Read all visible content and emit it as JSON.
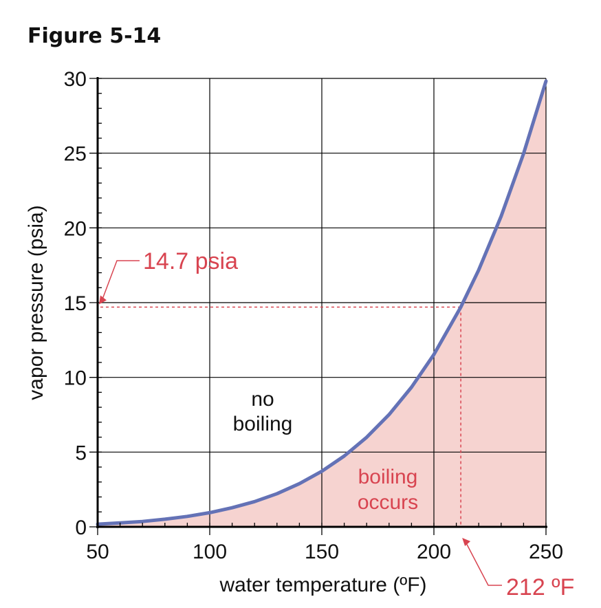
{
  "figure_title": "Figure 5-14",
  "colors": {
    "curve": "#6472b6",
    "fill": "#f6d3d0",
    "annotation": "#d84450",
    "grid": "#000000"
  },
  "chart_data": {
    "type": "area",
    "title": "",
    "xlabel": "water temperature (ºF)",
    "ylabel": "vapor pressure (psia)",
    "xlim": [
      50,
      250
    ],
    "ylim": [
      0,
      30
    ],
    "x_ticks": [
      50,
      100,
      150,
      200,
      250
    ],
    "y_ticks": [
      0,
      5,
      10,
      15,
      20,
      25,
      30
    ],
    "x_tick_labels": [
      "50",
      "100",
      "150",
      "200",
      "250"
    ],
    "y_tick_labels": [
      "0",
      "5",
      "10",
      "15",
      "20",
      "25",
      "30"
    ],
    "grid": true,
    "series": [
      {
        "x": [
          50,
          60,
          70,
          80,
          90,
          100,
          110,
          120,
          130,
          140,
          150,
          160,
          170,
          180,
          190,
          200,
          212,
          220,
          230,
          240,
          250
        ],
        "values": [
          0.18,
          0.26,
          0.36,
          0.51,
          0.7,
          0.95,
          1.28,
          1.69,
          2.22,
          2.89,
          3.72,
          4.74,
          5.99,
          7.51,
          9.34,
          11.53,
          14.7,
          17.19,
          20.78,
          24.97,
          29.82
        ]
      }
    ],
    "annotations": [
      {
        "text": "14.7 psia",
        "x": 50,
        "y": 14.7
      },
      {
        "text": "212 ºF",
        "x": 212,
        "y": 0
      }
    ],
    "regions": [
      {
        "lines": [
          "no",
          "boiling"
        ]
      },
      {
        "lines": [
          "boiling",
          "occurs"
        ]
      }
    ]
  }
}
